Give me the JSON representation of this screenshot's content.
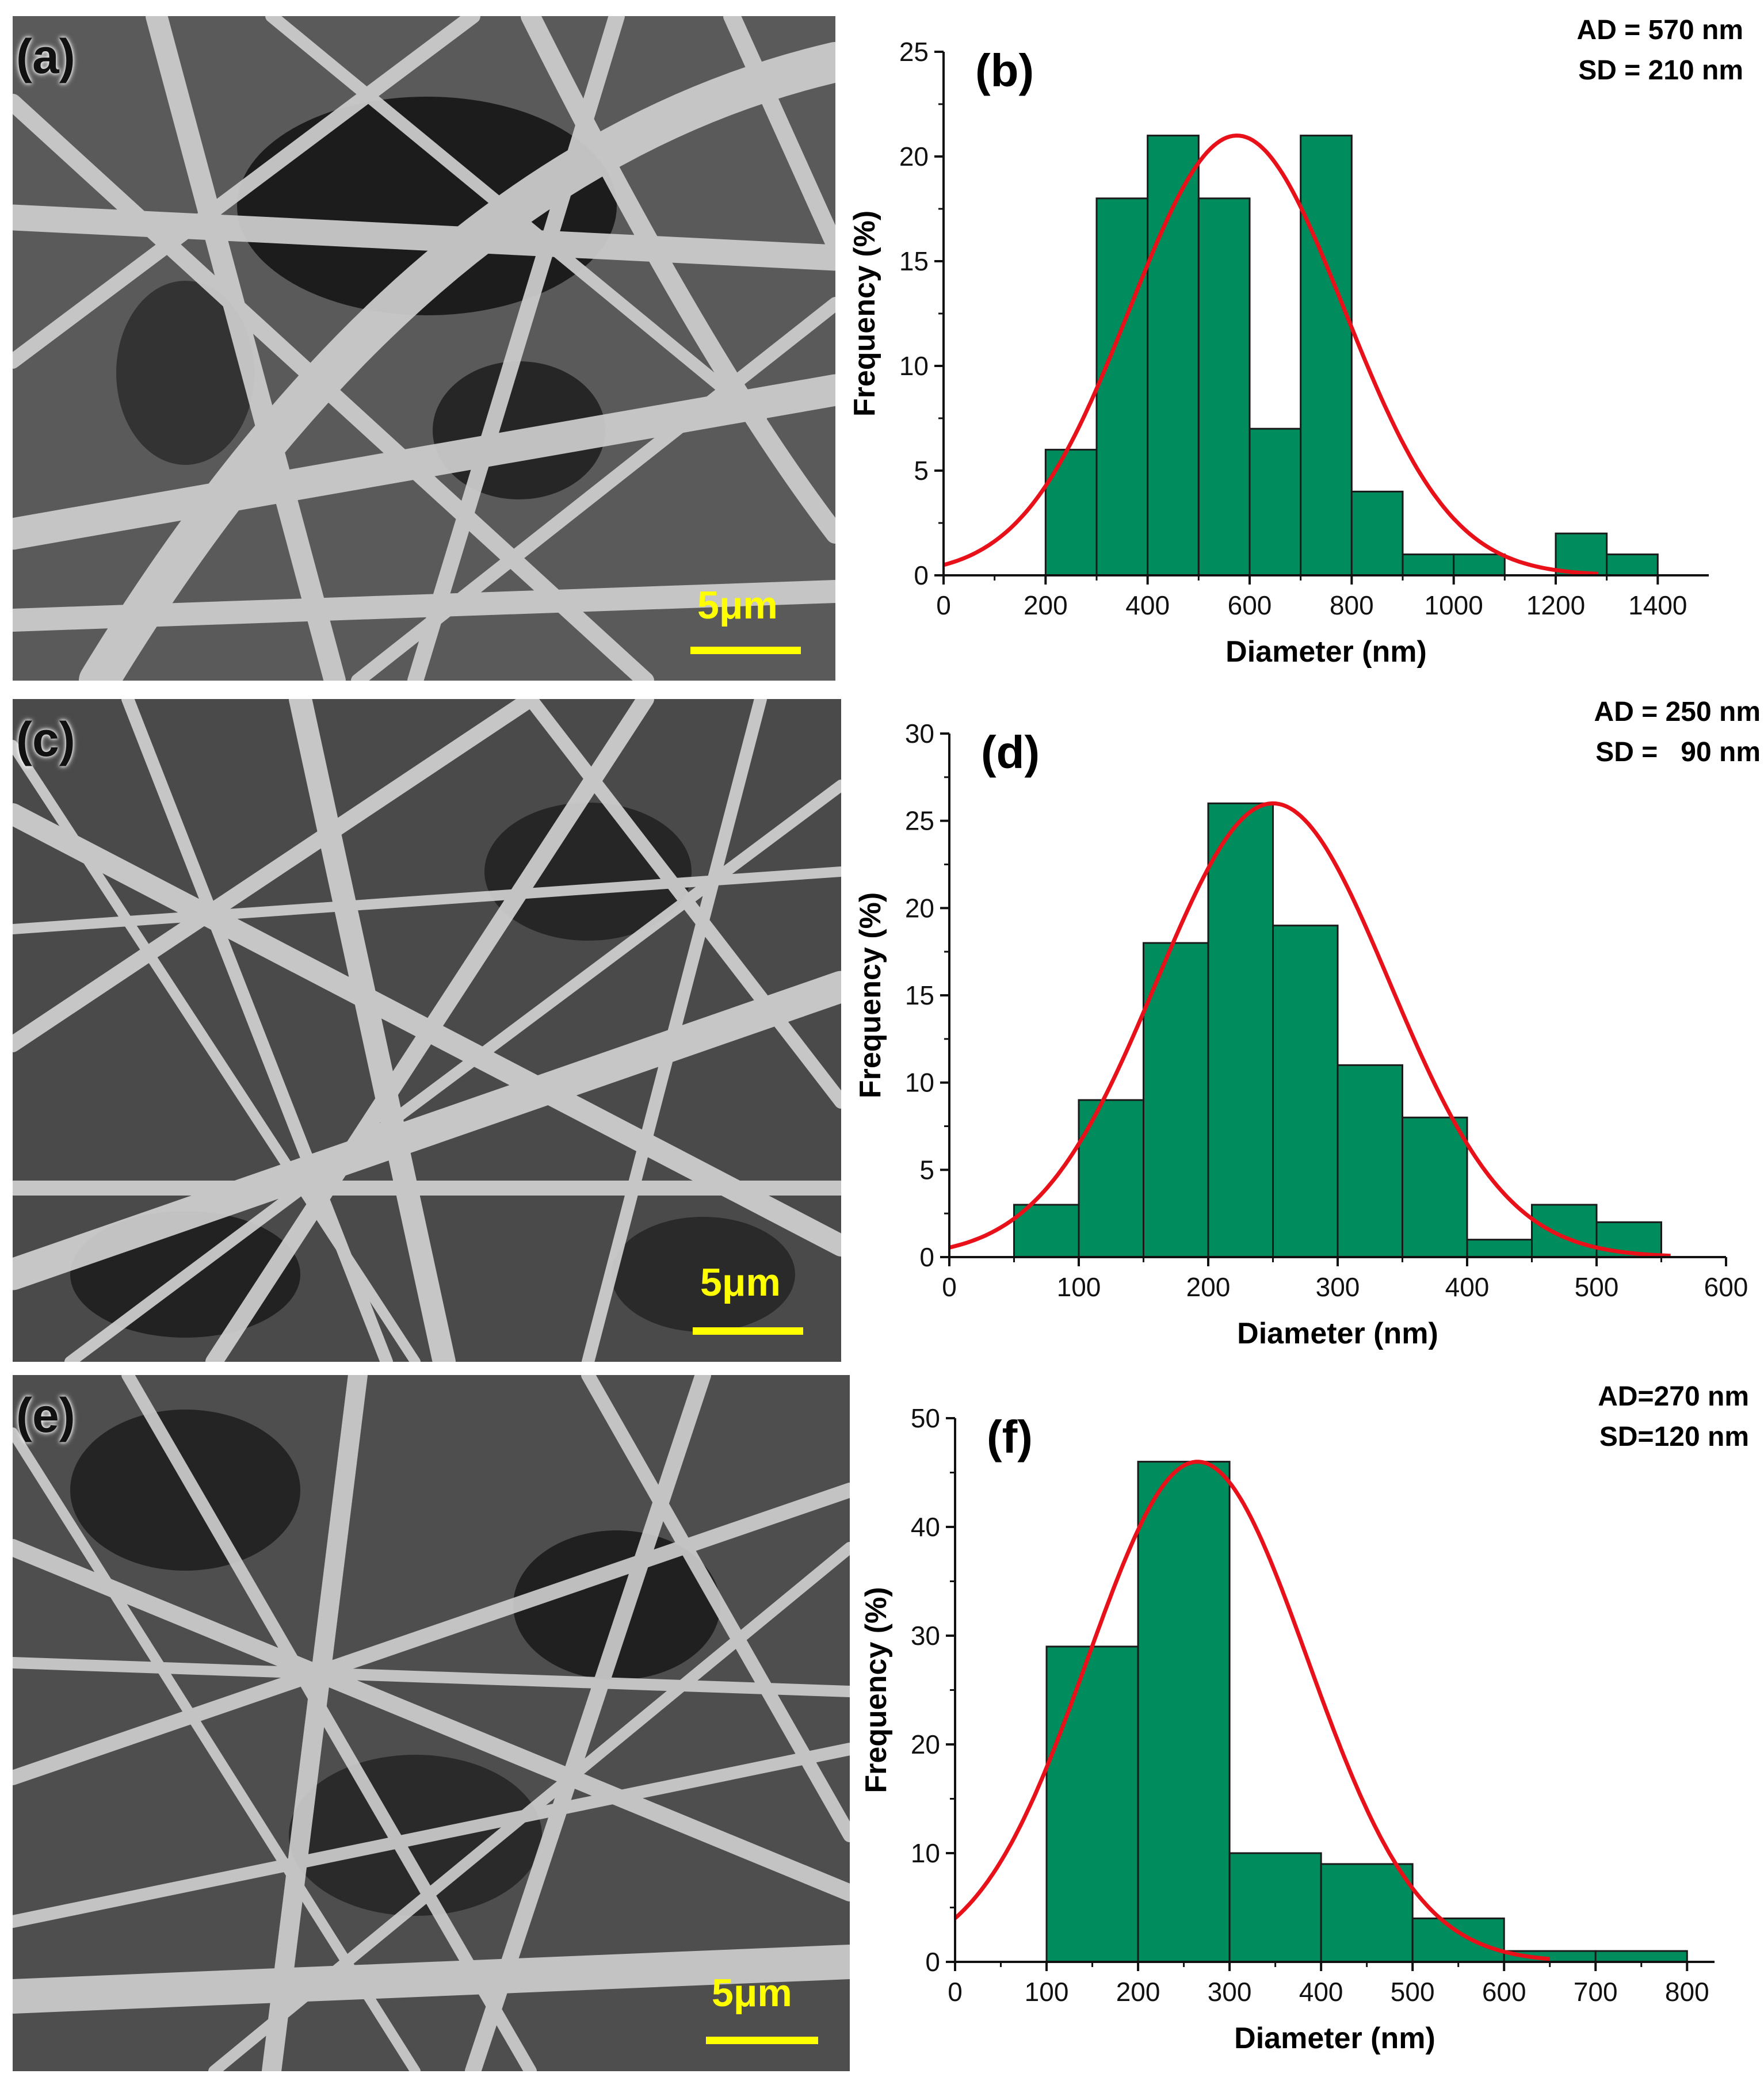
{
  "colors": {
    "bar_fill": "#008c5c",
    "bar_stroke": "#1a1a1a",
    "fit_line": "#e8111a",
    "axis": "#111111",
    "scale_bar": "#ffff00"
  },
  "micrographs": [
    {
      "label": "(a)",
      "scale_label": "5μm"
    },
    {
      "label": "(c)",
      "scale_label": "5μm"
    },
    {
      "label": "(e)",
      "scale_label": "5μm"
    }
  ],
  "chart_data": [
    {
      "panel": "(b)",
      "type": "bar",
      "title": "",
      "xlabel": "Diameter (nm)",
      "ylabel": "Frequency (%)",
      "xlim": [
        0,
        1500
      ],
      "ylim": [
        0,
        25
      ],
      "xticks": [
        0,
        200,
        400,
        600,
        800,
        1000,
        1200,
        1400
      ],
      "yticks": [
        0,
        5,
        10,
        15,
        20,
        25
      ],
      "bins": [
        [
          200,
          300
        ],
        [
          300,
          400
        ],
        [
          400,
          500
        ],
        [
          500,
          600
        ],
        [
          600,
          700
        ],
        [
          700,
          800
        ],
        [
          800,
          900
        ],
        [
          900,
          1000
        ],
        [
          1000,
          1100
        ],
        [
          1100,
          1200
        ],
        [
          1200,
          1300
        ],
        [
          1300,
          1400
        ]
      ],
      "values": [
        6,
        18,
        21,
        18,
        7,
        21,
        4,
        1,
        1,
        0,
        2,
        1
      ],
      "fit": {
        "type": "gaussian",
        "mean": 575,
        "sd": 210,
        "peak": 21,
        "x_range": [
          0,
          1290
        ]
      },
      "annotations": [
        "AD = 570 nm",
        "SD = 210 nm"
      ]
    },
    {
      "panel": "(d)",
      "type": "bar",
      "title": "",
      "xlabel": "Diameter (nm)",
      "ylabel": "Frequency (%)",
      "xlim": [
        0,
        600
      ],
      "ylim": [
        0,
        30
      ],
      "xticks": [
        0,
        100,
        200,
        300,
        400,
        500,
        600
      ],
      "yticks": [
        0,
        5,
        10,
        15,
        20,
        25,
        30
      ],
      "bins": [
        [
          50,
          100
        ],
        [
          100,
          150
        ],
        [
          150,
          200
        ],
        [
          200,
          250
        ],
        [
          250,
          300
        ],
        [
          300,
          350
        ],
        [
          350,
          400
        ],
        [
          400,
          450
        ],
        [
          450,
          500
        ],
        [
          500,
          550
        ]
      ],
      "values": [
        3,
        9,
        18,
        26,
        19,
        11,
        8,
        1,
        3,
        2
      ],
      "fit": {
        "type": "gaussian",
        "mean": 250,
        "sd": 90,
        "peak": 26,
        "x_range": [
          0,
          560
        ]
      },
      "annotations": [
        "AD = 250 nm",
        "SD =   90 nm"
      ]
    },
    {
      "panel": "(f)",
      "type": "bar",
      "title": "",
      "xlabel": "Diameter (nm)",
      "ylabel": "Frequency (%)",
      "xlim": [
        0,
        830
      ],
      "ylim": [
        0,
        50
      ],
      "xticks": [
        0,
        100,
        200,
        300,
        400,
        500,
        600,
        700,
        800
      ],
      "yticks": [
        0,
        10,
        20,
        30,
        40,
        50
      ],
      "bins": [
        [
          100,
          200
        ],
        [
          200,
          300
        ],
        [
          300,
          400
        ],
        [
          400,
          500
        ],
        [
          500,
          600
        ],
        [
          600,
          700
        ],
        [
          700,
          800
        ]
      ],
      "values": [
        29,
        46,
        10,
        9,
        4,
        1,
        1
      ],
      "fit": {
        "type": "gaussian",
        "mean": 265,
        "sd": 120,
        "peak": 46,
        "x_range": [
          0,
          650
        ]
      },
      "annotations": [
        "AD=270 nm",
        "SD=120 nm"
      ]
    }
  ]
}
